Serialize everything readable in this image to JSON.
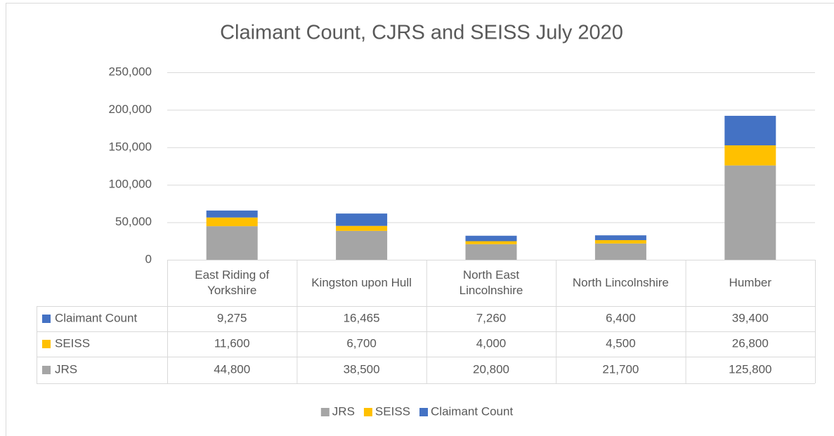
{
  "chart_data": {
    "type": "stacked_bar",
    "title": "Claimant Count, CJRS and SEISS July 2020",
    "categories": [
      "East Riding of Yorkshire",
      "Kingston upon Hull",
      "North East Lincolnshire",
      "North Lincolnshire",
      "Humber"
    ],
    "series": [
      {
        "name": "JRS",
        "color": "#a5a5a5",
        "values": [
          44800,
          38500,
          20800,
          21700,
          125800
        ],
        "value_labels": [
          "44,800",
          "38,500",
          "20,800",
          "21,700",
          "125,800"
        ]
      },
      {
        "name": "SEISS",
        "color": "#ffc000",
        "values": [
          11600,
          6700,
          4000,
          4500,
          26800
        ],
        "value_labels": [
          "11,600",
          "6,700",
          "4,000",
          "4,500",
          "26,800"
        ]
      },
      {
        "name": "Claimant Count",
        "color": "#4472c4",
        "values": [
          9275,
          16465,
          7260,
          6400,
          39400
        ],
        "value_labels": [
          "9,275",
          "16,465",
          "7,260",
          "6,400",
          "39,400"
        ]
      }
    ],
    "ylim": [
      0,
      250000
    ],
    "yticks": [
      0,
      {
        "value": 50000,
        "label": "50,000"
      },
      {
        "value": 100000,
        "label": "100,000"
      },
      {
        "value": 150000,
        "label": "150,000"
      },
      {
        "value": 200000,
        "label": "200,000"
      },
      {
        "value": 250000,
        "label": "250,000"
      }
    ],
    "grid": true,
    "legend": "bottom"
  }
}
